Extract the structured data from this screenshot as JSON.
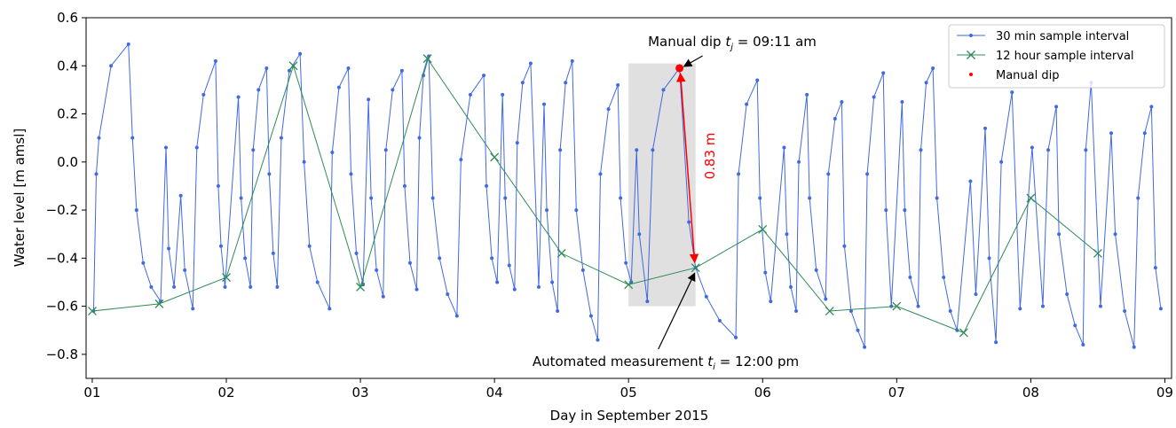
{
  "chart_data": {
    "type": "line",
    "x_label": "Day in September 2015",
    "y_label": "Water level [m amsl]",
    "xlim": [
      0.954,
      9.05
    ],
    "ylim": [
      -0.9,
      0.6
    ],
    "xticks": [
      {
        "value": 1,
        "label": "01"
      },
      {
        "value": 2,
        "label": "02"
      },
      {
        "value": 3,
        "label": "03"
      },
      {
        "value": 4,
        "label": "04"
      },
      {
        "value": 5,
        "label": "05"
      },
      {
        "value": 6,
        "label": "06"
      },
      {
        "value": 7,
        "label": "07"
      },
      {
        "value": 8,
        "label": "08"
      },
      {
        "value": 9,
        "label": "09"
      }
    ],
    "yticks": [
      0.6,
      0.4,
      0.2,
      {
        "value": 0,
        "label": "0.0"
      },
      {
        "value": -0.2,
        "label": "−0.2"
      },
      {
        "value": -0.4,
        "label": "−0.4"
      },
      {
        "value": -0.6,
        "label": "−0.6"
      },
      {
        "value": -0.8,
        "label": "−0.8"
      }
    ],
    "legend": "upper right",
    "highlight": {
      "xlim": [
        5.0,
        5.5
      ],
      "ylim": [
        -0.6,
        0.41
      ],
      "color": "#e0e0e0"
    },
    "series": [
      {
        "name": "30 min sample interval",
        "color": "#4169e1",
        "marker": "dot",
        "line": true,
        "x": [
          1.01,
          1.03,
          1.05,
          1.14,
          1.27,
          1.3,
          1.33,
          1.38,
          1.44,
          1.51,
          1.55,
          1.57,
          1.61,
          1.66,
          1.69,
          1.75,
          1.78,
          1.83,
          1.92,
          1.94,
          1.96,
          1.99,
          2.09,
          2.11,
          2.14,
          2.18,
          2.2,
          2.24,
          2.3,
          2.32,
          2.35,
          2.38,
          2.41,
          2.47,
          2.55,
          2.58,
          2.62,
          2.68,
          2.77,
          2.79,
          2.84,
          2.91,
          2.93,
          2.97,
          3.02,
          3.06,
          3.08,
          3.12,
          3.17,
          3.19,
          3.24,
          3.31,
          3.33,
          3.37,
          3.42,
          3.44,
          3.47,
          3.51,
          3.54,
          3.59,
          3.65,
          3.72,
          3.75,
          3.82,
          3.92,
          3.94,
          3.98,
          4.02,
          4.06,
          4.08,
          4.11,
          4.15,
          4.17,
          4.21,
          4.27,
          4.33,
          4.37,
          4.39,
          4.43,
          4.47,
          4.49,
          4.53,
          4.58,
          4.61,
          4.66,
          4.72,
          4.77,
          4.79,
          4.85,
          4.92,
          4.94,
          4.98,
          5.02,
          5.06,
          5.08,
          5.14,
          5.18,
          5.26,
          5.38,
          5.45,
          5.5,
          5.58,
          5.68,
          5.8,
          5.82,
          5.88,
          5.96,
          5.98,
          6.02,
          6.06,
          6.16,
          6.18,
          6.21,
          6.25,
          6.27,
          6.33,
          6.35,
          6.4,
          6.47,
          6.49,
          6.54,
          6.59,
          6.61,
          6.66,
          6.71,
          6.76,
          6.78,
          6.83,
          6.9,
          6.92,
          6.96,
          7.04,
          7.06,
          7.1,
          7.16,
          7.18,
          7.22,
          7.27,
          7.3,
          7.35,
          7.4,
          7.45,
          7.55,
          7.59,
          7.66,
          7.69,
          7.74,
          7.78,
          7.86,
          7.92,
          8.01,
          8.09,
          8.13,
          8.19,
          8.21,
          8.27,
          8.33,
          8.39,
          8.41,
          8.45,
          8.52,
          8.6,
          8.63,
          8.7,
          8.77,
          8.8,
          8.85,
          8.9,
          8.93,
          8.97
        ],
        "values": [
          -0.62,
          -0.05,
          0.1,
          0.4,
          0.49,
          0.1,
          -0.2,
          -0.42,
          -0.52,
          -0.58,
          0.06,
          -0.36,
          -0.52,
          -0.14,
          -0.45,
          -0.61,
          0.06,
          0.28,
          0.42,
          -0.1,
          -0.35,
          -0.52,
          0.27,
          -0.15,
          -0.4,
          -0.52,
          0.05,
          0.3,
          0.39,
          -0.05,
          -0.38,
          -0.52,
          0.1,
          0.38,
          0.45,
          0.0,
          -0.35,
          -0.5,
          -0.61,
          0.04,
          0.31,
          0.39,
          -0.05,
          -0.38,
          -0.51,
          0.26,
          -0.15,
          -0.45,
          -0.56,
          0.05,
          0.3,
          0.38,
          -0.1,
          -0.42,
          -0.53,
          0.1,
          0.36,
          0.44,
          -0.15,
          -0.4,
          -0.55,
          -0.64,
          0.01,
          0.28,
          0.36,
          -0.1,
          -0.4,
          -0.5,
          0.28,
          -0.15,
          -0.43,
          -0.53,
          0.08,
          0.33,
          0.41,
          -0.52,
          0.24,
          -0.2,
          -0.5,
          -0.62,
          0.05,
          0.33,
          0.42,
          -0.2,
          -0.45,
          -0.64,
          -0.74,
          -0.05,
          0.22,
          0.32,
          -0.15,
          -0.42,
          -0.5,
          0.05,
          -0.3,
          -0.58,
          0.05,
          0.3,
          0.39,
          -0.25,
          -0.44,
          -0.56,
          -0.66,
          -0.73,
          -0.05,
          0.24,
          0.34,
          -0.15,
          -0.46,
          -0.58,
          0.06,
          -0.3,
          -0.52,
          -0.62,
          0.0,
          0.28,
          -0.15,
          -0.45,
          -0.57,
          -0.05,
          0.18,
          0.25,
          -0.35,
          -0.62,
          -0.7,
          -0.77,
          -0.05,
          0.27,
          0.37,
          -0.2,
          -0.6,
          0.25,
          -0.2,
          -0.48,
          -0.6,
          0.05,
          0.33,
          0.39,
          -0.15,
          -0.48,
          -0.62,
          -0.7,
          -0.08,
          -0.55,
          0.14,
          -0.4,
          -0.75,
          0.0,
          0.29,
          -0.61,
          0.06,
          -0.6,
          0.05,
          0.23,
          -0.3,
          -0.55,
          -0.68,
          -0.76,
          0.05,
          0.33,
          -0.6,
          0.12,
          -0.3,
          -0.62,
          -0.77,
          -0.15,
          0.12,
          0.23,
          -0.44,
          -0.61
        ]
      },
      {
        "name": "12 hour sample interval",
        "color": "#2e8b57",
        "marker": "x",
        "line": true,
        "x": [
          1.0,
          1.5,
          2.0,
          2.5,
          3.0,
          3.5,
          4.0,
          4.5,
          5.0,
          5.5,
          6.0,
          6.5,
          7.0,
          7.5,
          8.0,
          8.5
        ],
        "values": [
          -0.62,
          -0.59,
          -0.48,
          0.4,
          -0.52,
          0.43,
          0.02,
          -0.38,
          -0.51,
          -0.44,
          -0.28,
          -0.62,
          -0.6,
          -0.71,
          -0.15,
          -0.38
        ]
      },
      {
        "name": "Manual dip",
        "color": "#ff0000",
        "marker": "bigdot",
        "line": false,
        "x": [
          5.38
        ],
        "values": [
          0.39
        ]
      }
    ],
    "annotations": [
      {
        "parts": [
          "Manual dip ",
          "t",
          "j",
          " =  09:11 am"
        ]
      },
      {
        "parts": [
          "Automated measurement ",
          "t",
          "i",
          " =  12:00 pm"
        ]
      },
      {
        "text": "0.83 m",
        "color": "#ff0000"
      }
    ]
  }
}
